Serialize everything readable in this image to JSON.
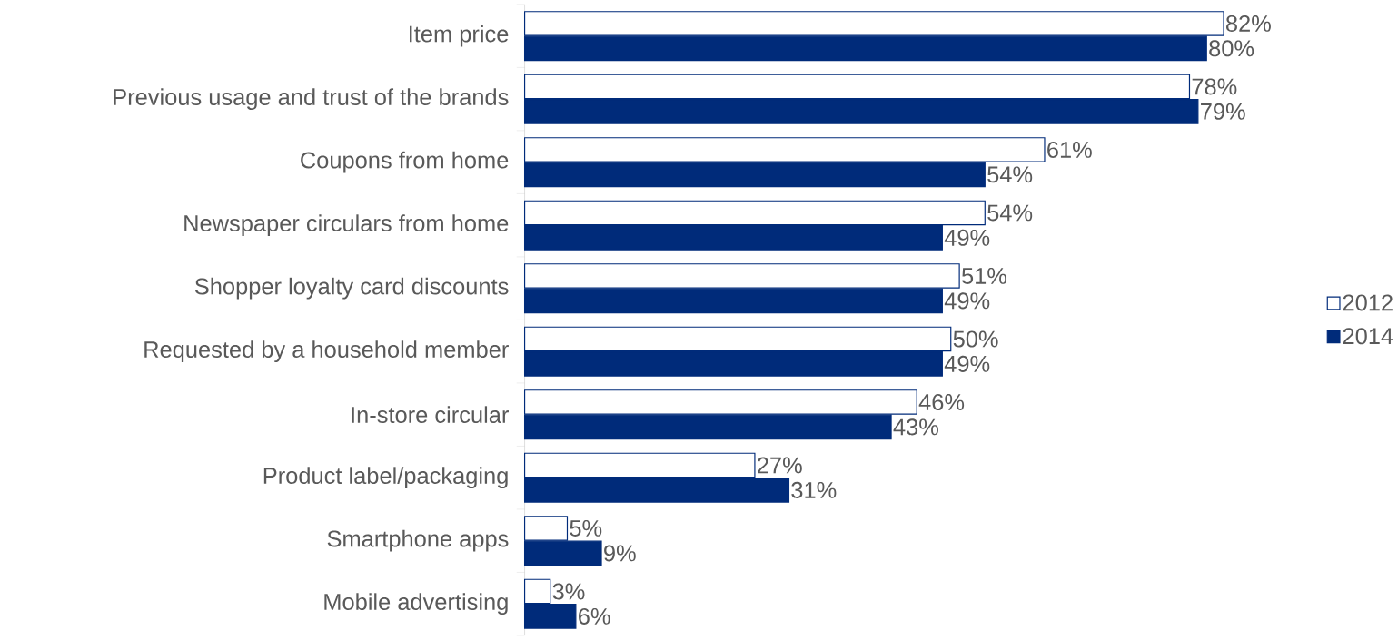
{
  "chart_data": {
    "type": "bar",
    "orientation": "horizontal",
    "categories": [
      "Item price",
      "Previous usage and trust of the brands",
      "Coupons from home",
      "Newspaper circulars from home",
      "Shopper loyalty card discounts",
      "Requested by a household member",
      "In-store circular",
      "Product label/packaging",
      "Smartphone apps",
      "Mobile advertising"
    ],
    "series": [
      {
        "name": "2012",
        "color": "#ffffff",
        "values": [
          82,
          78,
          61,
          54,
          51,
          50,
          46,
          27,
          5,
          3
        ],
        "value_labels": [
          "82%",
          "78%",
          "61%",
          "54%",
          "51%",
          "50%",
          "46%",
          "27%",
          "5%",
          "3%"
        ]
      },
      {
        "name": "2014",
        "color": "#002b7a",
        "values": [
          80,
          79,
          54,
          49,
          49,
          49,
          43,
          31,
          9,
          6
        ],
        "value_labels": [
          "80%",
          "79%",
          "54%",
          "49%",
          "49%",
          "49%",
          "43%",
          "31%",
          "9%",
          "6%"
        ]
      }
    ],
    "legend": "right"
  }
}
